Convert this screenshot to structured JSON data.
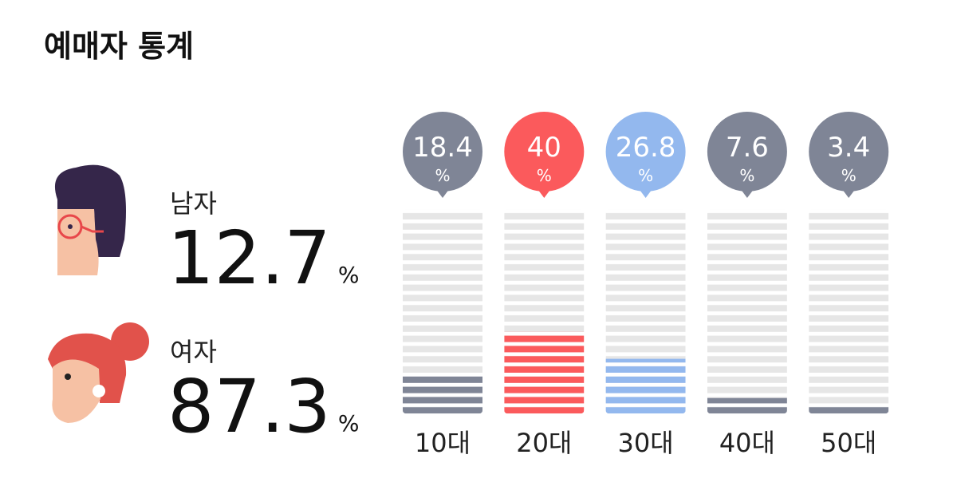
{
  "title": "예매자 통계",
  "unit": "%",
  "gender": [
    {
      "label": "남자",
      "value": 12.7
    },
    {
      "label": "여자",
      "value": 87.3
    }
  ],
  "chart_data": {
    "type": "bar",
    "categories": [
      "10대",
      "20대",
      "30대",
      "40대",
      "50대"
    ],
    "values": [
      18.4,
      40,
      26.8,
      7.6,
      3.4
    ],
    "colors": [
      "#7f8596",
      "#fb5a5c",
      "#93b8ee",
      "#7f8596",
      "#7f8596"
    ],
    "ylim": [
      0,
      100
    ]
  }
}
